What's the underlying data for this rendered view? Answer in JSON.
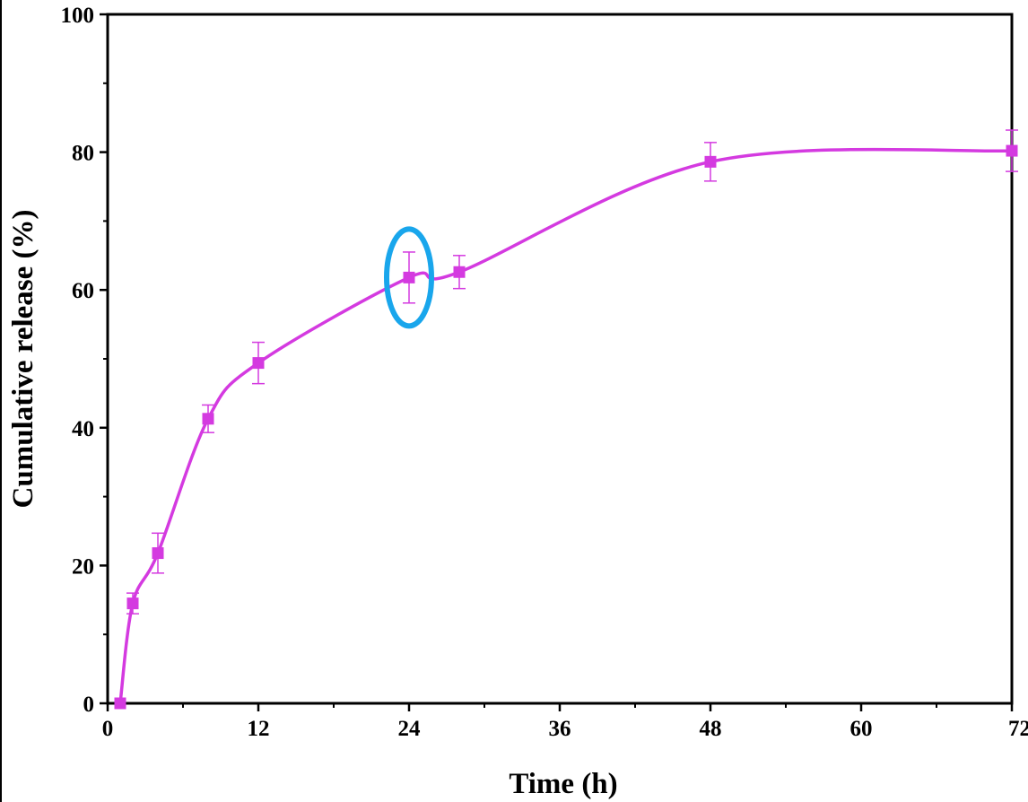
{
  "chart_data": {
    "type": "line",
    "title": "",
    "xlabel": "Time (h)",
    "ylabel": "Cumulative release (%)",
    "xlim": [
      0,
      72
    ],
    "ylim": [
      0,
      100
    ],
    "x_ticks": [
      "0",
      "12",
      "24",
      "36",
      "48",
      "60",
      "72"
    ],
    "y_ticks": [
      "0",
      "20",
      "40",
      "60",
      "80",
      "100"
    ],
    "grid": false,
    "legend": "none",
    "series": [
      {
        "color": "#d43ae0",
        "marker": "square",
        "line": "smooth",
        "x": [
          1,
          2,
          4,
          8,
          12,
          24,
          28,
          48,
          72
        ],
        "y": [
          0,
          14.5,
          21.8,
          41.3,
          49.4,
          61.8,
          62.6,
          78.6,
          80.2
        ],
        "error": [
          0,
          1.5,
          2.9,
          2.0,
          3.0,
          3.7,
          2.4,
          2.8,
          3.0
        ]
      }
    ],
    "highlight": {
      "x": 24,
      "y": 61.8,
      "shape": "ellipse",
      "color": "#19a6ec"
    }
  }
}
